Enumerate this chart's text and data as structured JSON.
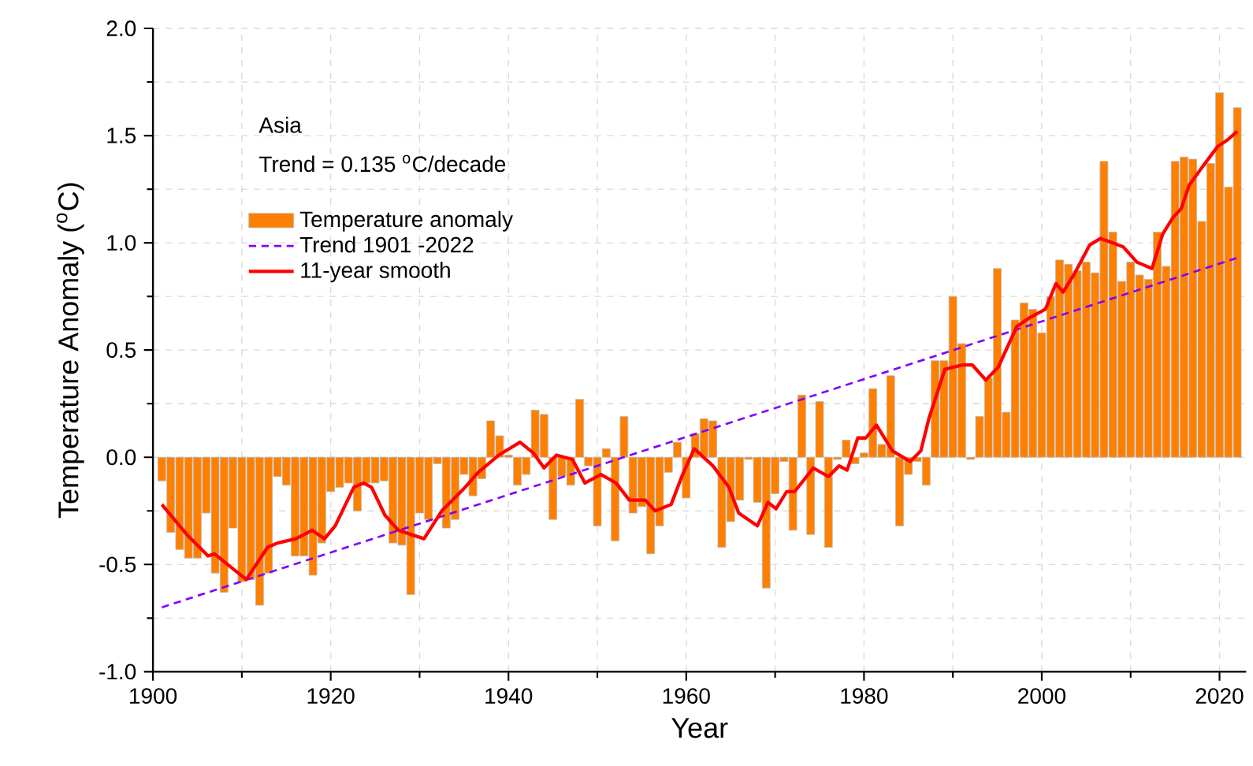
{
  "chart_data": {
    "type": "bar",
    "xlabel": "Year",
    "ylabel": "Temperature Anomaly ($^{o}$C)",
    "annotations": [
      "Asia",
      "Trend = 0.135 $^{o}$C/decade"
    ],
    "x": [
      1901,
      1902,
      1903,
      1904,
      1905,
      1906,
      1907,
      1908,
      1909,
      1910,
      1911,
      1912,
      1913,
      1914,
      1915,
      1916,
      1917,
      1918,
      1919,
      1920,
      1921,
      1922,
      1923,
      1924,
      1925,
      1926,
      1927,
      1928,
      1929,
      1930,
      1931,
      1932,
      1933,
      1934,
      1935,
      1936,
      1937,
      1938,
      1939,
      1940,
      1941,
      1942,
      1943,
      1944,
      1945,
      1946,
      1947,
      1948,
      1949,
      1950,
      1951,
      1952,
      1953,
      1954,
      1955,
      1956,
      1957,
      1958,
      1959,
      1960,
      1961,
      1962,
      1963,
      1964,
      1965,
      1966,
      1967,
      1968,
      1969,
      1970,
      1971,
      1972,
      1973,
      1974,
      1975,
      1976,
      1977,
      1978,
      1979,
      1980,
      1981,
      1982,
      1983,
      1984,
      1985,
      1986,
      1987,
      1988,
      1989,
      1990,
      1991,
      1992,
      1993,
      1994,
      1995,
      1996,
      1997,
      1998,
      1999,
      2000,
      2001,
      2002,
      2003,
      2004,
      2005,
      2006,
      2007,
      2008,
      2009,
      2010,
      2011,
      2012,
      2013,
      2014,
      2015,
      2016,
      2017,
      2018,
      2019,
      2020,
      2021,
      2022
    ],
    "series": [
      {
        "name": "Temperature anomaly",
        "color": "#ff8000",
        "values": [
          -0.11,
          -0.35,
          -0.43,
          -0.47,
          -0.47,
          -0.26,
          -0.54,
          -0.63,
          -0.33,
          -0.58,
          -0.57,
          -0.69,
          -0.54,
          -0.09,
          -0.13,
          -0.46,
          -0.46,
          -0.55,
          -0.4,
          -0.16,
          -0.14,
          -0.12,
          -0.25,
          -0.12,
          -0.12,
          -0.11,
          -0.4,
          -0.41,
          -0.64,
          -0.26,
          -0.29,
          -0.03,
          -0.33,
          -0.29,
          -0.08,
          -0.18,
          -0.1,
          0.17,
          0.1,
          0.01,
          -0.13,
          -0.08,
          0.22,
          0.2,
          -0.29,
          -0.09,
          -0.13,
          0.27,
          -0.04,
          -0.32,
          0.04,
          -0.39,
          0.19,
          -0.26,
          -0.23,
          -0.45,
          -0.32,
          -0.07,
          0.07,
          -0.19,
          0.11,
          0.18,
          0.17,
          -0.42,
          -0.3,
          -0.2,
          -0.01,
          -0.21,
          -0.61,
          -0.17,
          -0.02,
          -0.34,
          0.29,
          -0.36,
          0.26,
          -0.42,
          -0.01,
          0.08,
          -0.03,
          0.02,
          0.32,
          0.06,
          0.38,
          -0.32,
          -0.08,
          -0.02,
          -0.13,
          0.45,
          0.45,
          0.75,
          0.53,
          -0.01,
          0.19,
          0.37,
          0.88,
          0.21,
          0.64,
          0.72,
          0.69,
          0.58,
          0.75,
          0.92,
          0.9,
          0.87,
          0.91,
          0.86,
          1.38,
          1.05,
          0.82,
          0.91,
          0.85,
          0.83,
          1.05,
          0.89,
          1.38,
          1.4,
          1.39,
          1.1,
          1.37,
          1.7,
          1.26,
          1.63
        ]
      },
      {
        "name": "Trend 1901 -2022",
        "type": "line",
        "color": "#8000ff",
        "line_style": "dashed",
        "x": [
          1901,
          2022
        ],
        "values": [
          -0.7,
          0.93
        ]
      },
      {
        "name": "11-year smooth",
        "type": "line",
        "color": "#ff0000",
        "line_style": "solid",
        "x": [
          1901,
          1903.8,
          1906.2,
          1906.9,
          1910.5,
          1912.9,
          1914,
          1916.1,
          1917.9,
          1919.3,
          1920.5,
          1922.6,
          1923.7,
          1924.6,
          1926.1,
          1927.6,
          1930.5,
          1932.5,
          1934.9,
          1936.6,
          1938.9,
          1941.3,
          1942.8,
          1944,
          1945.4,
          1947.2,
          1948.6,
          1950.4,
          1952.1,
          1953.6,
          1955.4,
          1956.5,
          1958.3,
          1959.5,
          1960.9,
          1963,
          1964.8,
          1965.9,
          1968,
          1969.2,
          1970.1,
          1971.3,
          1972.2,
          1974.3,
          1976,
          1977.2,
          1978.1,
          1979.3,
          1980.2,
          1981.4,
          1983.2,
          1985.2,
          1986.4,
          1987.3,
          1989.1,
          1991,
          1992.2,
          1993.7,
          1995.1,
          1997.2,
          1998.6,
          2000.4,
          2001.6,
          2002.4,
          2003.6,
          2005.4,
          2006.6,
          2008,
          2009.2,
          2010.7,
          2012.4,
          2013.6,
          2014.8,
          2015.7,
          2016.6,
          2018,
          2019.8,
          2020.9,
          2022
        ],
        "values": [
          -0.22,
          -0.36,
          -0.46,
          -0.45,
          -0.57,
          -0.42,
          -0.4,
          -0.38,
          -0.34,
          -0.38,
          -0.32,
          -0.14,
          -0.12,
          -0.14,
          -0.27,
          -0.34,
          -0.38,
          -0.25,
          -0.15,
          -0.07,
          0.01,
          0.07,
          0.02,
          -0.05,
          0.01,
          -0.01,
          -0.12,
          -0.08,
          -0.12,
          -0.2,
          -0.2,
          -0.25,
          -0.22,
          -0.09,
          0.04,
          -0.04,
          -0.14,
          -0.26,
          -0.32,
          -0.21,
          -0.24,
          -0.16,
          -0.16,
          -0.05,
          -0.09,
          -0.04,
          -0.06,
          0.09,
          0.09,
          0.15,
          0.03,
          -0.02,
          0.03,
          0.18,
          0.41,
          0.43,
          0.43,
          0.36,
          0.42,
          0.61,
          0.65,
          0.69,
          0.81,
          0.77,
          0.85,
          0.99,
          1.02,
          1.0,
          0.98,
          0.91,
          0.88,
          1.04,
          1.12,
          1.16,
          1.27,
          1.35,
          1.45,
          1.48,
          1.52
        ]
      }
    ],
    "xlim": [
      1900,
      2023
    ],
    "ylim": [
      -1.0,
      2.0
    ],
    "xticks": [
      1900,
      1920,
      1940,
      1960,
      1980,
      2000,
      2020
    ],
    "yticks": [
      {
        "value": -1.0,
        "label": "-1.0"
      },
      {
        "value": -0.5,
        "label": "-0.5"
      },
      {
        "value": 0,
        "label": "0.0"
      },
      {
        "value": 0.5,
        "label": "0.5"
      },
      {
        "value": 1.0,
        "label": "1.0"
      },
      {
        "value": 1.5,
        "label": "1.5"
      },
      {
        "value": 2.0,
        "label": "2.0"
      }
    ],
    "grid": true,
    "legend": "top left",
    "marker": "none"
  }
}
